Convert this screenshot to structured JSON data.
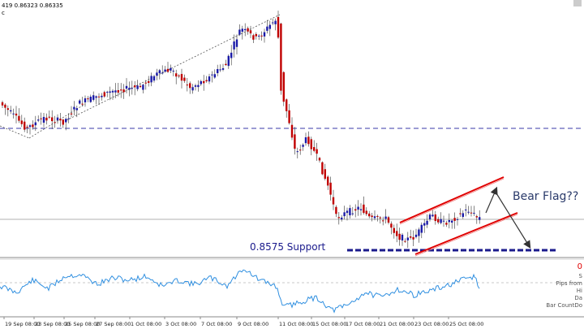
{
  "header": {
    "ohlc_text": "419 0.86323 0.86335",
    "sub_text": "c"
  },
  "annotations": {
    "support_label": "0.8575 Support",
    "pattern_label": "Bear Flag??"
  },
  "indicator_panel": {
    "value_text": "0",
    "info_labels": [
      "S",
      "Pips from",
      "Hi",
      "Da",
      "Bar CountDo"
    ]
  },
  "xaxis": {
    "labels": [
      "19 Sep 08:00",
      "23 Sep 08:00",
      "25 Sep 08:00",
      "27 Sep 08:00",
      "1 Oct 08:00",
      "3 Oct 08:00",
      "7 Oct 08:00",
      "9 Oct 08:00",
      "11 Oct 08:00",
      "15 Oct 08:00",
      "17 Oct 08:00",
      "21 Oct 08:00",
      "23 Oct 08:00",
      "25 Oct 08:00"
    ]
  },
  "colors": {
    "bull": "#1a1aa8",
    "bear": "#c00000",
    "channel": "#e00000",
    "support": "#1a1a8c",
    "hline": "#3a3aa8",
    "indicator": "#2f8fe0",
    "wick": "#333333"
  }
}
